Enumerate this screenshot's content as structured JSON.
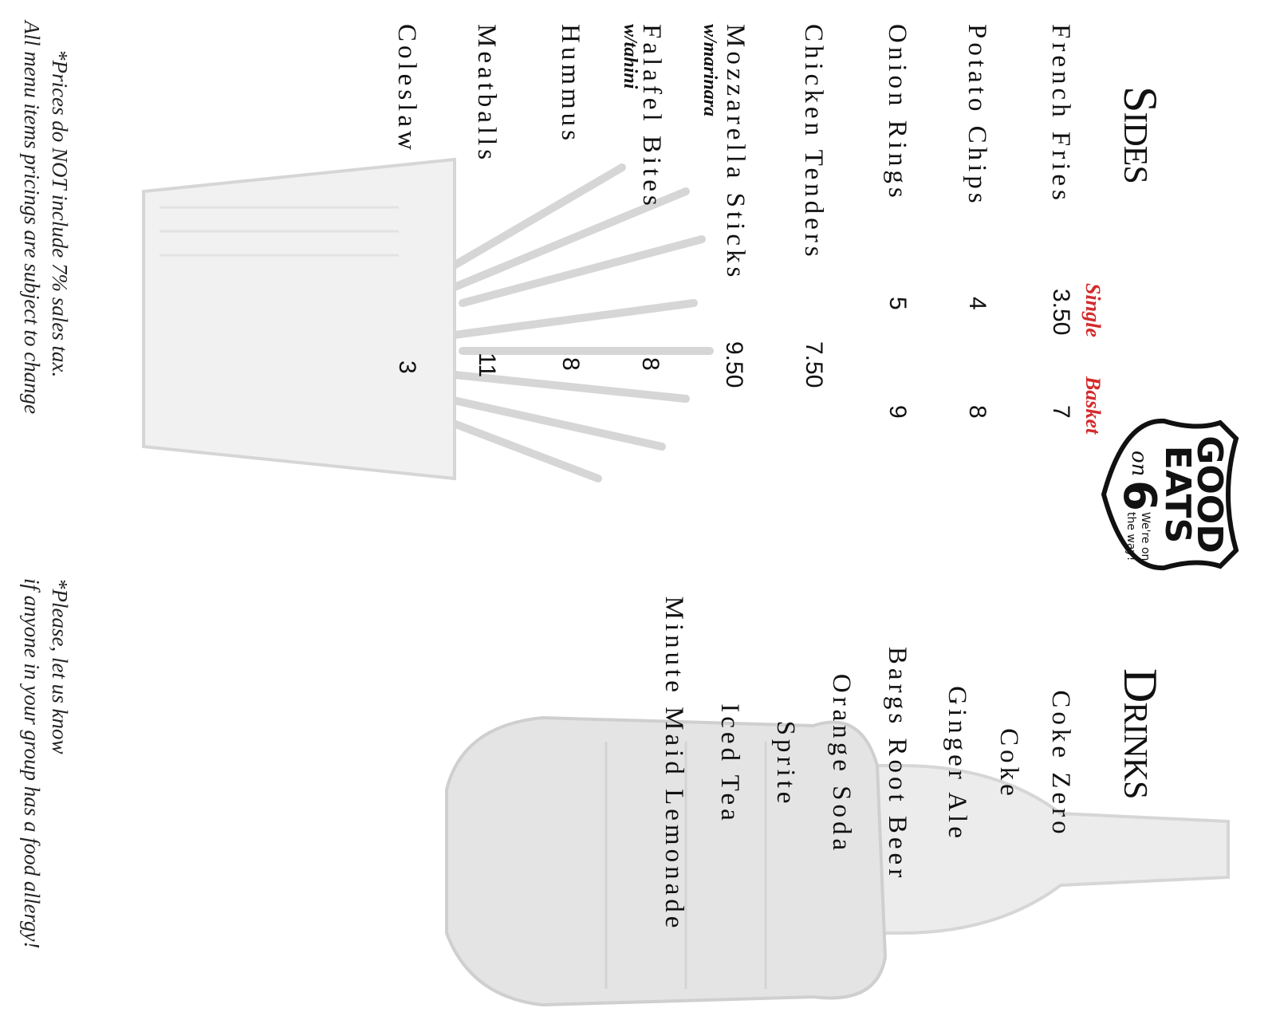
{
  "colors": {
    "accent": "#d42a2a",
    "text": "#111111",
    "sketch": "#d8d8d8"
  },
  "logo": {
    "line1": "GOOD",
    "line2": "EATS",
    "on": "on",
    "number": "6",
    "tagline1": "We're on",
    "tagline2": "the way!"
  },
  "sides": {
    "title": "Sides",
    "columns": {
      "single": "Single",
      "basket": "Basket"
    },
    "items": [
      {
        "name": "French Fries",
        "single": "3.50",
        "basket": "7"
      },
      {
        "name": "Potato Chips",
        "single": "4",
        "basket": "8"
      },
      {
        "name": "Onion Rings",
        "single": "5",
        "basket": "9"
      },
      {
        "name": "Chicken Tenders",
        "single": "7.50"
      },
      {
        "name": "Mozzarella Sticks",
        "note": "w/marinara",
        "single": "9.50"
      },
      {
        "name": "Falafel Bites",
        "note": "w/tahini",
        "single": "8"
      },
      {
        "name": "Hummus",
        "single": "8"
      },
      {
        "name": "Meatballs",
        "single": "11"
      },
      {
        "name": "Coleslaw",
        "single": "3"
      }
    ]
  },
  "drinks": {
    "title": "Drinks",
    "items": [
      "Coke Zero",
      "Coke",
      "Ginger Ale",
      "Bargs Root Beer",
      "Orange Soda",
      "Sprite",
      "Iced Tea",
      "Minute Maid Lemonade"
    ]
  },
  "footer": {
    "tax_line1": "*Prices do NOT include 7% sales tax.",
    "tax_line2": "All menu items pricings are subject to change",
    "allergy_line1": "*Please, let us know",
    "allergy_line2": "if anyone in your group has a food allergy!"
  }
}
